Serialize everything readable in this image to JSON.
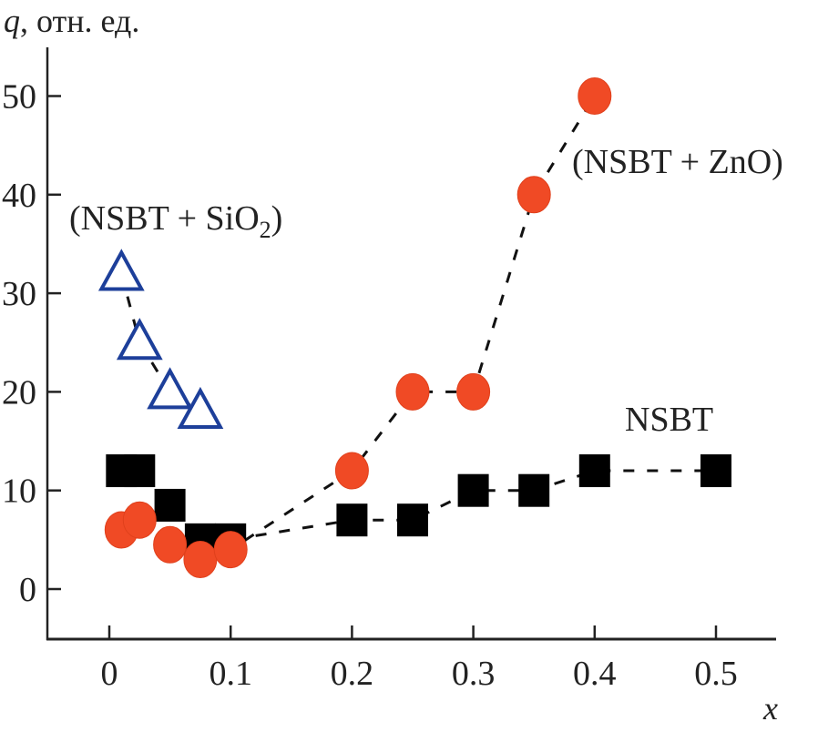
{
  "chart_data": {
    "type": "scatter",
    "title": "",
    "xlabel": "x",
    "ylabel_var": "q",
    "ylabel_rest": ", отн. ед.",
    "xlim": [
      -0.05,
      0.55
    ],
    "ylim": [
      -8,
      55
    ],
    "grid": false,
    "x_ticks": [
      0,
      0.1,
      0.2,
      0.3,
      0.4,
      0.5
    ],
    "x_tick_labels": [
      "0",
      "0.1",
      "0.2",
      "0.3",
      "0.4",
      "0.5"
    ],
    "y_ticks": [
      0,
      10,
      20,
      30,
      40,
      50
    ],
    "y_tick_labels": [
      "0",
      "10",
      "20",
      "30",
      "40",
      "50"
    ],
    "series": [
      {
        "name": "NSBT",
        "marker": "square",
        "color": "#000000",
        "line": "dashed",
        "x": [
          0.01,
          0.025,
          0.05,
          0.075,
          0.1,
          0.2,
          0.25,
          0.3,
          0.35,
          0.4,
          0.5
        ],
        "y": [
          12,
          12,
          8.5,
          5,
          5,
          7,
          7,
          10,
          10,
          12,
          12
        ]
      },
      {
        "name": "(NSBT + ZnO)",
        "marker": "circle",
        "color": "#f04a25",
        "line": "dashed",
        "x": [
          0.01,
          0.025,
          0.05,
          0.075,
          0.1,
          0.2,
          0.25,
          0.3,
          0.35,
          0.4
        ],
        "y": [
          6,
          7,
          4.5,
          3,
          4,
          12,
          20,
          20,
          40,
          50
        ]
      },
      {
        "name": "(NSBT + SiO2)",
        "marker": "triangle-open",
        "color": "#1d3f9a",
        "line": "dashed",
        "x": [
          0.01,
          0.025,
          0.05,
          0.075
        ],
        "y": [
          32,
          25,
          20,
          18
        ]
      }
    ],
    "annotations": {
      "nsbt": "NSBT",
      "zno": "(NSBT + ZnO)",
      "sio2_main": "(NSBT + SiO",
      "sio2_sub": "2",
      "sio2_close": ")"
    }
  }
}
